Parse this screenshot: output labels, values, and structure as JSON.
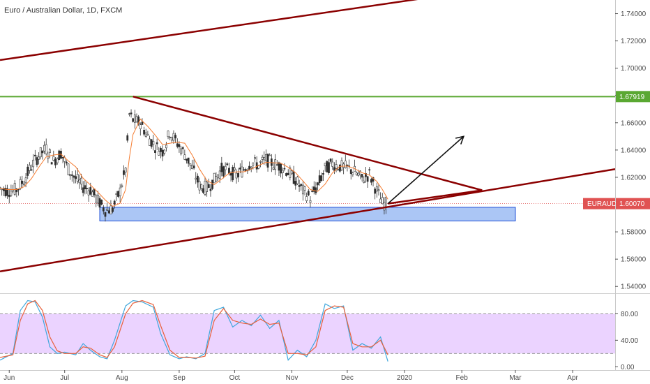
{
  "title": "Euro / Australian Dollar, 1D, FXCM",
  "colors": {
    "up": "#2e2e2e",
    "down": "#2e2e2e",
    "ma": "#f57c30",
    "trend": "#8b0000",
    "support_line": "#5aa832",
    "zone_fill": "#7ea8f0",
    "zone_stroke": "#1f4fd6",
    "k_line": "#3fa7dc",
    "d_line": "#e8603a",
    "osc_band": "#e6c8ff",
    "price_line": "#e05252",
    "arrow": "#111111",
    "grid": "#eeeeee",
    "axis": "#555555"
  },
  "chart_data": [
    {
      "type": "candlestick",
      "title": "Euro / Australian Dollar, 1D, FXCM",
      "symbol": "EURAUD",
      "x_ticks": [
        "Jun",
        "Jul",
        "Aug",
        "Sep",
        "Oct",
        "Nov",
        "Dec",
        "2020",
        "Feb",
        "Mar",
        "Apr"
      ],
      "x_tick_dates": [
        "2019-06-01",
        "2019-07-01",
        "2019-08-01",
        "2019-09-01",
        "2019-10-01",
        "2019-11-01",
        "2019-12-01",
        "2020-01-01",
        "2020-02-01",
        "2020-03-01",
        "2020-04-01"
      ],
      "xlim": [
        "2019-05-27",
        "2020-04-24"
      ],
      "ylim": [
        1.535,
        1.75
      ],
      "y_ticks": [
        "1.54000",
        "1.56000",
        "1.58000",
        "1.60000",
        "1.62000",
        "1.64000",
        "1.66000",
        "1.68000",
        "1.70000",
        "1.72000",
        "1.74000"
      ],
      "y_tick_values": [
        1.54,
        1.56,
        1.58,
        1.6,
        1.62,
        1.64,
        1.66,
        1.68,
        1.7,
        1.72,
        1.74
      ],
      "grid": false,
      "close_series": [
        [
          "2019-05-27",
          1.612
        ],
        [
          "2019-05-31",
          1.61
        ],
        [
          "2019-06-05",
          1.611
        ],
        [
          "2019-06-09",
          1.618
        ],
        [
          "2019-06-13",
          1.628
        ],
        [
          "2019-06-17",
          1.636
        ],
        [
          "2019-06-21",
          1.641
        ],
        [
          "2019-06-25",
          1.632
        ],
        [
          "2019-06-29",
          1.638
        ],
        [
          "2019-07-03",
          1.626
        ],
        [
          "2019-07-07",
          1.619
        ],
        [
          "2019-07-11",
          1.613
        ],
        [
          "2019-07-15",
          1.611
        ],
        [
          "2019-07-19",
          1.603
        ],
        [
          "2019-07-23",
          1.596
        ],
        [
          "2019-07-27",
          1.597
        ],
        [
          "2019-07-31",
          1.61
        ],
        [
          "2019-08-03",
          1.626
        ],
        [
          "2019-08-05",
          1.666
        ],
        [
          "2019-08-07",
          1.662
        ],
        [
          "2019-08-11",
          1.66
        ],
        [
          "2019-08-15",
          1.65
        ],
        [
          "2019-08-19",
          1.643
        ],
        [
          "2019-08-23",
          1.639
        ],
        [
          "2019-08-27",
          1.653
        ],
        [
          "2019-08-31",
          1.645
        ],
        [
          "2019-09-04",
          1.637
        ],
        [
          "2019-09-08",
          1.627
        ],
        [
          "2019-09-12",
          1.614
        ],
        [
          "2019-09-16",
          1.612
        ],
        [
          "2019-09-20",
          1.618
        ],
        [
          "2019-09-24",
          1.626
        ],
        [
          "2019-09-28",
          1.625
        ],
        [
          "2019-10-02",
          1.621
        ],
        [
          "2019-10-06",
          1.626
        ],
        [
          "2019-10-10",
          1.631
        ],
        [
          "2019-10-14",
          1.629
        ],
        [
          "2019-10-18",
          1.633
        ],
        [
          "2019-10-22",
          1.63
        ],
        [
          "2019-10-26",
          1.628
        ],
        [
          "2019-10-30",
          1.624
        ],
        [
          "2019-11-03",
          1.618
        ],
        [
          "2019-11-07",
          1.61
        ],
        [
          "2019-11-11",
          1.605
        ],
        [
          "2019-11-15",
          1.614
        ],
        [
          "2019-11-19",
          1.626
        ],
        [
          "2019-11-23",
          1.63
        ],
        [
          "2019-11-27",
          1.628
        ],
        [
          "2019-12-01",
          1.627
        ],
        [
          "2019-12-05",
          1.624
        ],
        [
          "2019-12-09",
          1.619
        ],
        [
          "2019-12-13",
          1.622
        ],
        [
          "2019-12-17",
          1.61
        ],
        [
          "2019-12-20",
          1.601
        ],
        [
          "2019-12-23",
          1.6007
        ]
      ],
      "last_price": "1.60070",
      "last_label": "EURAUD",
      "horizontal_level": "1.67919",
      "annotations": {
        "horizontal_level": 1.67919,
        "upper_channel": [
          [
            "2019-05-27",
            1.706
          ],
          [
            "2020-01-10",
            1.751
          ]
        ],
        "descending_trendline": [
          [
            "2019-08-07",
            1.6792
          ],
          [
            "2020-02-12",
            1.6105
          ]
        ],
        "ascending_trendline": [
          [
            "2019-05-27",
            1.551
          ],
          [
            "2020-04-24",
            1.626
          ]
        ],
        "rising_line_from_last": [
          [
            "2019-12-23",
            1.6007
          ],
          [
            "2020-02-12",
            1.6105
          ]
        ],
        "support_zone": [
          [
            "2019-07-20",
            1.588
          ],
          [
            "2020-03-01",
            1.598
          ]
        ],
        "arrow": [
          [
            "2019-12-23",
            1.6007
          ],
          [
            "2020-02-02",
            1.65
          ]
        ]
      }
    },
    {
      "type": "line",
      "title": "",
      "y_ticks": [
        "80.00",
        "40.00",
        "0.00"
      ],
      "y_tick_values": [
        80,
        40,
        0
      ],
      "ylim": [
        -5,
        110
      ],
      "band": [
        20,
        80
      ],
      "series": [
        {
          "values": [
            [
              "2019-05-27",
              10
            ],
            [
              "2019-06-03",
              20
            ],
            [
              "2019-06-07",
              85
            ],
            [
              "2019-06-11",
              100
            ],
            [
              "2019-06-15",
              98
            ],
            [
              "2019-06-19",
              75
            ],
            [
              "2019-06-23",
              30
            ],
            [
              "2019-06-27",
              20
            ],
            [
              "2019-07-01",
              22
            ],
            [
              "2019-07-07",
              18
            ],
            [
              "2019-07-11",
              35
            ],
            [
              "2019-07-15",
              25
            ],
            [
              "2019-07-20",
              15
            ],
            [
              "2019-07-24",
              12
            ],
            [
              "2019-07-28",
              40
            ],
            [
              "2019-08-03",
              92
            ],
            [
              "2019-08-07",
              100
            ],
            [
              "2019-08-12",
              98
            ],
            [
              "2019-08-18",
              90
            ],
            [
              "2019-08-22",
              50
            ],
            [
              "2019-08-27",
              18
            ],
            [
              "2019-09-01",
              12
            ],
            [
              "2019-09-05",
              15
            ],
            [
              "2019-09-10",
              12
            ],
            [
              "2019-09-15",
              20
            ],
            [
              "2019-09-20",
              85
            ],
            [
              "2019-09-25",
              90
            ],
            [
              "2019-09-30",
              60
            ],
            [
              "2019-10-05",
              70
            ],
            [
              "2019-10-10",
              62
            ],
            [
              "2019-10-15",
              78
            ],
            [
              "2019-10-20",
              58
            ],
            [
              "2019-10-25",
              70
            ],
            [
              "2019-10-30",
              10
            ],
            [
              "2019-11-04",
              25
            ],
            [
              "2019-11-09",
              15
            ],
            [
              "2019-11-14",
              40
            ],
            [
              "2019-11-19",
              95
            ],
            [
              "2019-11-24",
              88
            ],
            [
              "2019-11-29",
              92
            ],
            [
              "2019-12-04",
              25
            ],
            [
              "2019-12-09",
              35
            ],
            [
              "2019-12-14",
              28
            ],
            [
              "2019-12-19",
              45
            ],
            [
              "2019-12-23",
              8
            ]
          ]
        },
        {
          "values": [
            [
              "2019-05-27",
              14
            ],
            [
              "2019-06-03",
              18
            ],
            [
              "2019-06-07",
              70
            ],
            [
              "2019-06-11",
              95
            ],
            [
              "2019-06-15",
              100
            ],
            [
              "2019-06-19",
              85
            ],
            [
              "2019-06-23",
              45
            ],
            [
              "2019-06-27",
              24
            ],
            [
              "2019-07-01",
              20
            ],
            [
              "2019-07-07",
              20
            ],
            [
              "2019-07-11",
              30
            ],
            [
              "2019-07-15",
              28
            ],
            [
              "2019-07-20",
              18
            ],
            [
              "2019-07-24",
              14
            ],
            [
              "2019-07-28",
              30
            ],
            [
              "2019-08-03",
              80
            ],
            [
              "2019-08-07",
              96
            ],
            [
              "2019-08-12",
              100
            ],
            [
              "2019-08-18",
              94
            ],
            [
              "2019-08-22",
              62
            ],
            [
              "2019-08-27",
              25
            ],
            [
              "2019-09-01",
              14
            ],
            [
              "2019-09-05",
              14
            ],
            [
              "2019-09-10",
              13
            ],
            [
              "2019-09-15",
              16
            ],
            [
              "2019-09-20",
              70
            ],
            [
              "2019-09-25",
              88
            ],
            [
              "2019-09-30",
              70
            ],
            [
              "2019-10-05",
              66
            ],
            [
              "2019-10-10",
              64
            ],
            [
              "2019-10-15",
              72
            ],
            [
              "2019-10-20",
              64
            ],
            [
              "2019-10-25",
              66
            ],
            [
              "2019-10-30",
              20
            ],
            [
              "2019-11-04",
              20
            ],
            [
              "2019-11-09",
              18
            ],
            [
              "2019-11-14",
              30
            ],
            [
              "2019-11-19",
              85
            ],
            [
              "2019-11-24",
              92
            ],
            [
              "2019-11-29",
              90
            ],
            [
              "2019-12-04",
              35
            ],
            [
              "2019-12-09",
              30
            ],
            [
              "2019-12-14",
              30
            ],
            [
              "2019-12-19",
              40
            ],
            [
              "2019-12-23",
              18
            ]
          ]
        }
      ]
    }
  ]
}
